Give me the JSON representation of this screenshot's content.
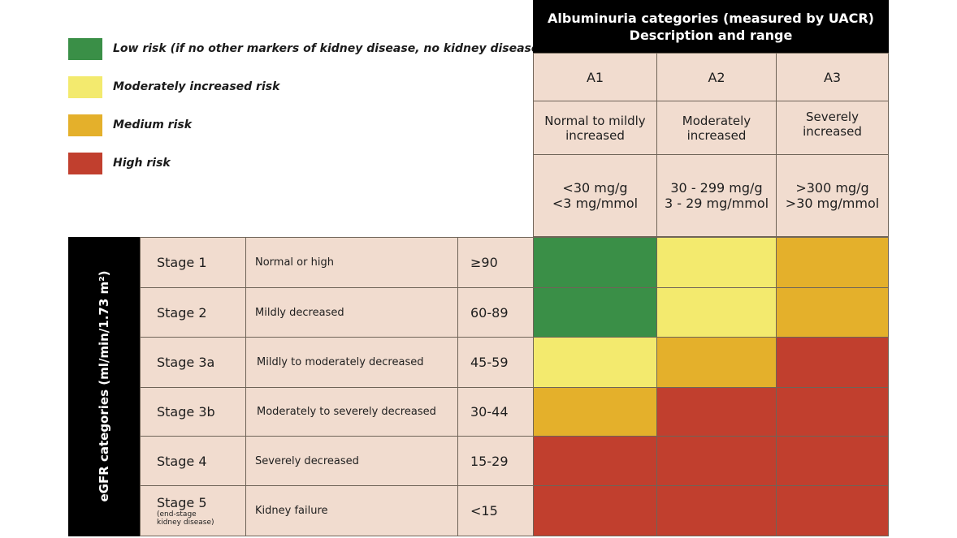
{
  "colors": {
    "low": "#3a8f47",
    "moderate": "#f3ea6e",
    "medium": "#e4b02b",
    "high": "#c13f2e"
  },
  "legend": [
    {
      "key": "low",
      "label": "Low risk (if no other markers of kidney disease, no kidney disease)"
    },
    {
      "key": "moderate",
      "label": "Moderately increased risk"
    },
    {
      "key": "medium",
      "label": "Medium risk"
    },
    {
      "key": "high",
      "label": "High risk"
    }
  ],
  "albuminuria_header": {
    "line1": "Albuminuria categories (measured by UACR)",
    "line2": "Description and range"
  },
  "albuminuria": [
    {
      "code": "A1",
      "desc1": "Normal to mildly",
      "desc2": "increased",
      "range1": "<30 mg/g",
      "range2": "<3 mg/mmol"
    },
    {
      "code": "A2",
      "desc1": "Moderately",
      "desc2": "increased",
      "range1": "30 - 299 mg/g",
      "range2": "3 - 29 mg/mmol"
    },
    {
      "code": "A3",
      "desc1": "Severely increased",
      "desc2": "",
      "range1": ">300 mg/g",
      "range2": ">30 mg/mmol"
    }
  ],
  "egfr_label": "eGFR categories (ml/min/1.73 m²)",
  "stages": [
    {
      "stage": "Stage 1",
      "sub1": "",
      "sub2": "",
      "desc": "Normal or high",
      "range": "≥90",
      "risk": [
        "low",
        "moderate",
        "medium"
      ]
    },
    {
      "stage": "Stage 2",
      "sub1": "",
      "sub2": "",
      "desc": "Mildly decreased",
      "range": "60-89",
      "risk": [
        "low",
        "moderate",
        "medium"
      ]
    },
    {
      "stage": "Stage 3a",
      "sub1": "",
      "sub2": "",
      "desc": "Mildly to moderately decreased",
      "range": "45-59",
      "risk": [
        "moderate",
        "medium",
        "high"
      ]
    },
    {
      "stage": "Stage 3b",
      "sub1": "",
      "sub2": "",
      "desc": "Moderately to severely decreased",
      "range": "30-44",
      "risk": [
        "medium",
        "high",
        "high"
      ]
    },
    {
      "stage": "Stage 4",
      "sub1": "",
      "sub2": "",
      "desc": "Severely decreased",
      "range": "15-29",
      "risk": [
        "high",
        "high",
        "high"
      ]
    },
    {
      "stage": "Stage 5",
      "sub1": "(end-stage",
      "sub2": "kidney disease)",
      "desc": "Kidney failure",
      "range": "<15",
      "risk": [
        "high",
        "high",
        "high"
      ]
    }
  ]
}
